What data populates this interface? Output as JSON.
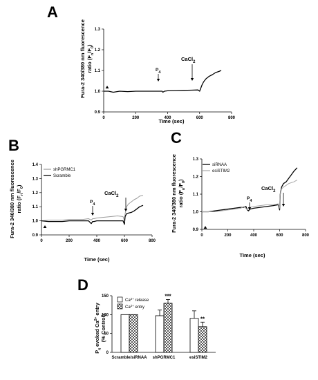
{
  "chart_data": [
    {
      "panel": "A",
      "type": "line",
      "xlabel": "Time (sec)",
      "ylabel_lines": [
        "Fura-2 340/380 nm fluorescence",
        "ratio (F_n/F_0)"
      ],
      "xlim": [
        0,
        800
      ],
      "ylim": [
        0.9,
        1.3
      ],
      "xticks": [
        0,
        200,
        400,
        600,
        800
      ],
      "xtick_labels": [
        "0",
        "200",
        "400",
        "600",
        "800"
      ],
      "yticks": [
        0.9,
        1.0,
        1.1,
        1.2,
        1.3
      ],
      "ytick_labels": [
        "0.9",
        "1.0",
        "1.1",
        "1.2",
        "1.3"
      ],
      "series": [
        {
          "color": "#000000",
          "width": 1.3,
          "x": [
            0,
            30,
            60,
            100,
            150,
            200,
            250,
            300,
            350,
            365,
            370,
            380,
            400,
            450,
            500,
            550,
            590,
            600,
            605,
            615,
            625,
            640,
            660,
            680,
            700,
            720,
            735
          ],
          "y": [
            1.0,
            1.0,
            0.995,
            1.0,
            0.998,
            1.0,
            1.0,
            1.0,
            1.0,
            1.0,
            0.995,
            1.0,
            1.002,
            1.003,
            1.004,
            1.005,
            1.006,
            1.0,
            1.01,
            1.03,
            1.045,
            1.06,
            1.072,
            1.08,
            1.09,
            1.095,
            1.1
          ]
        }
      ],
      "annotations": [
        {
          "text": "P",
          "sub": "4",
          "x": 365,
          "type": "arrow-down"
        },
        {
          "text": "CaCl",
          "sub": "2",
          "x": 600,
          "type": "arrow-down"
        },
        {
          "x": 30,
          "type": "triangle"
        }
      ]
    },
    {
      "panel": "B",
      "type": "line",
      "xlabel": "Time (sec)",
      "ylabel_lines": [
        "Fura-2 340/380 nm fluorescence",
        "ratio (F_n/F_0)"
      ],
      "xlim": [
        0,
        800
      ],
      "ylim": [
        0.9,
        1.4
      ],
      "xticks": [
        0,
        200,
        400,
        600,
        800
      ],
      "xtick_labels": [
        "0",
        "200",
        "400",
        "600",
        "800"
      ],
      "yticks": [
        0.9,
        1.0,
        1.1,
        1.2,
        1.3,
        1.4
      ],
      "ytick_labels": [
        "0.9",
        "1.0",
        "1.1",
        "1.2",
        "1.3",
        "1.4"
      ],
      "legend": [
        "shPGRMC1",
        "Scramble"
      ],
      "series": [
        {
          "name": "shPGRMC1",
          "color": "#9a9a9a",
          "width": 1.0,
          "x": [
            0,
            50,
            100,
            150,
            200,
            250,
            300,
            340,
            360,
            370,
            380,
            400,
            450,
            500,
            550,
            590,
            600,
            605,
            615,
            630,
            650,
            670,
            690,
            710,
            735
          ],
          "y": [
            1.0,
            1.005,
            1.005,
            1.005,
            1.01,
            1.01,
            1.01,
            1.015,
            1.005,
            1.015,
            1.015,
            1.02,
            1.025,
            1.03,
            1.035,
            1.03,
            1.0,
            1.05,
            1.1,
            1.12,
            1.135,
            1.15,
            1.16,
            1.175,
            1.18
          ]
        },
        {
          "name": "Scramble",
          "color": "#000000",
          "width": 1.3,
          "x": [
            0,
            50,
            100,
            150,
            200,
            250,
            300,
            340,
            360,
            370,
            380,
            400,
            450,
            500,
            550,
            590,
            600,
            605,
            615,
            630,
            650,
            670,
            690,
            710,
            735
          ],
          "y": [
            1.0,
            0.995,
            0.995,
            0.995,
            1.0,
            1.0,
            1.0,
            1.0,
            0.98,
            0.995,
            0.995,
            1.0,
            1.0,
            1.0,
            1.0,
            1.0,
            0.975,
            1.03,
            1.05,
            1.055,
            1.06,
            1.07,
            1.085,
            1.1,
            1.11
          ]
        }
      ],
      "annotations": [
        {
          "text": "P",
          "sub": "4",
          "x": 365,
          "type": "arrow-down"
        },
        {
          "text": "CaCl",
          "sub": "2",
          "x": 600,
          "type": "arrow-down"
        },
        {
          "x": 30,
          "type": "triangle"
        }
      ]
    },
    {
      "panel": "C",
      "type": "line",
      "xlabel": "Time (sec)",
      "ylabel_lines": [
        "Fura-2 340/380 nm fluorescence",
        "ratio (F_n/F_0)"
      ],
      "xlim": [
        0,
        800
      ],
      "ylim": [
        0.9,
        1.3
      ],
      "xticks": [
        0,
        200,
        400,
        600,
        800
      ],
      "xtick_labels": [
        "0",
        "200",
        "400",
        "600",
        "800"
      ],
      "yticks": [
        0.9,
        1.0,
        1.1,
        1.2,
        1.3
      ],
      "ytick_labels": [
        "0.9",
        "1.0",
        "1.1",
        "1.2",
        "1.3"
      ],
      "legend": [
        "siRNAA",
        "esiSTIM2"
      ],
      "series": [
        {
          "name": "siRNAA",
          "color": "#000000",
          "width": 1.3,
          "x": [
            0,
            50,
            100,
            150,
            200,
            250,
            300,
            320,
            340,
            350,
            360,
            370,
            400,
            450,
            500,
            550,
            590,
            600,
            605,
            615,
            630,
            650,
            670,
            690,
            710,
            735
          ],
          "y": [
            1.0,
            1.0,
            1.005,
            1.01,
            1.015,
            1.02,
            1.025,
            1.025,
            1.03,
            1.01,
            1.005,
            1.015,
            1.02,
            1.025,
            1.03,
            1.035,
            1.04,
            1.01,
            1.1,
            1.14,
            1.16,
            1.17,
            1.19,
            1.21,
            1.23,
            1.25
          ]
        },
        {
          "name": "esiSTIM2",
          "color": "#a8a8a8",
          "width": 1.0,
          "x": [
            0,
            50,
            100,
            150,
            200,
            250,
            300,
            320,
            340,
            350,
            360,
            370,
            400,
            450,
            500,
            550,
            590,
            600,
            605,
            615,
            630,
            650,
            670,
            690,
            710,
            735
          ],
          "y": [
            1.0,
            1.0,
            1.0,
            1.005,
            1.01,
            1.015,
            1.02,
            1.03,
            1.02,
            1.01,
            1.02,
            1.025,
            1.03,
            1.035,
            1.04,
            1.04,
            1.045,
            1.02,
            1.1,
            1.13,
            1.14,
            1.15,
            1.16,
            1.165,
            1.17,
            1.18
          ]
        }
      ],
      "annotations": [
        {
          "text": "P",
          "sub": "4",
          "x": 360,
          "type": "arrow-down"
        },
        {
          "text": "CaCl",
          "sub": "2",
          "x": 605,
          "type": "arrow-down"
        },
        {
          "x": 30,
          "type": "triangle"
        }
      ]
    },
    {
      "panel": "D",
      "type": "bar",
      "ylabel_lines": [
        "P_4 evoked Ca^2+ entry",
        "(% Control)"
      ],
      "ylim": [
        0,
        150
      ],
      "yticks": [
        0,
        50,
        100,
        150
      ],
      "ytick_labels": [
        "0",
        "50",
        "100",
        "150"
      ],
      "categories": [
        "Scramble/siRNAA",
        "shPGRMC1",
        "esiSTIM2"
      ],
      "legend": [
        "Ca^2+ release",
        "Ca^2+ entry"
      ],
      "series": [
        {
          "name": "Ca^2+ release",
          "pattern": "white",
          "values": [
            100,
            97,
            90
          ],
          "errors": [
            0,
            15,
            20
          ]
        },
        {
          "name": "Ca^2+ entry",
          "pattern": "check",
          "values": [
            100,
            130,
            68
          ],
          "errors": [
            0,
            10,
            12
          ]
        }
      ],
      "significance": [
        {
          "category": 1,
          "series": 1,
          "text": "***"
        },
        {
          "category": 2,
          "series": 1,
          "text": "**"
        }
      ]
    }
  ],
  "labels": {
    "panel_letters": [
      "A",
      "B",
      "C",
      "D"
    ],
    "fura_line1": "Fura-2 340/380 nm fluorescence",
    "fura_line2_main": "ratio (F",
    "fura_n": "n",
    "fura_slash": "/F",
    "fura_0": "0",
    "fura_close": ")",
    "time_label": "Time (sec)",
    "p_text": "P",
    "p_sub": "4",
    "cacl_text": "CaCl",
    "cacl_sub": "2",
    "d_ylabel_p": "P",
    "d_ylabel_sub": "4",
    "d_ylabel_mid": " evoked Ca",
    "d_ylabel_sup": "2+",
    "d_ylabel_end": " entry",
    "d_ylabel_line2": "(% Control)",
    "ca_text": "Ca",
    "ca_sup": "2+",
    "release_text": " release",
    "entry_text": " entry"
  }
}
